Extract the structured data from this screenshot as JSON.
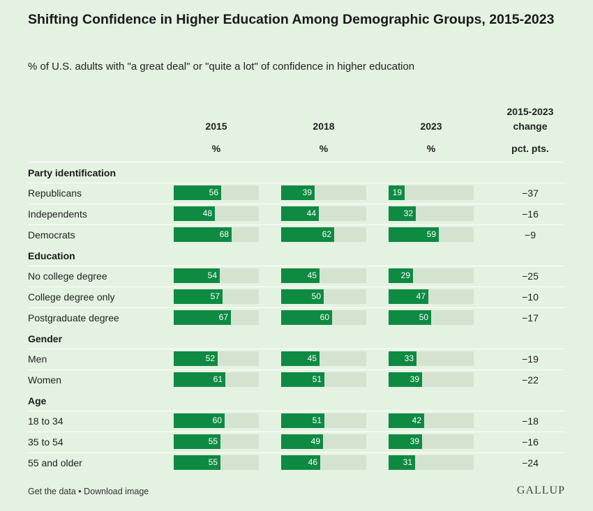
{
  "title": "Shifting Confidence in Higher Education Among Demographic Groups, 2015-2023",
  "subtitle": "% of U.S. adults with \"a great deal\" or \"quite a lot\" of confidence in higher education",
  "footer": {
    "links": "Get the data • Download image",
    "logo": "GALLUP"
  },
  "chart_data": {
    "type": "bar",
    "columns": [
      {
        "label": "2015",
        "unit": "%"
      },
      {
        "label": "2018",
        "unit": "%"
      },
      {
        "label": "2023",
        "unit": "%"
      },
      {
        "label": "2015-2023 change",
        "unit": "pct. pts."
      }
    ],
    "xlim": [
      0,
      100
    ],
    "colors": {
      "bar": "#0e8a43",
      "track": "#d3e3d0"
    },
    "groups": [
      {
        "name": "Party identification",
        "rows": [
          {
            "label": "Republicans",
            "values": [
              56,
              39,
              19
            ],
            "change": "−37"
          },
          {
            "label": "Independents",
            "values": [
              48,
              44,
              32
            ],
            "change": "−16"
          },
          {
            "label": "Democrats",
            "values": [
              68,
              62,
              59
            ],
            "change": "−9"
          }
        ]
      },
      {
        "name": "Education",
        "rows": [
          {
            "label": "No college degree",
            "values": [
              54,
              45,
              29
            ],
            "change": "−25"
          },
          {
            "label": "College degree only",
            "values": [
              57,
              50,
              47
            ],
            "change": "−10"
          },
          {
            "label": "Postgraduate degree",
            "values": [
              67,
              60,
              50
            ],
            "change": "−17"
          }
        ]
      },
      {
        "name": "Gender",
        "rows": [
          {
            "label": "Men",
            "values": [
              52,
              45,
              33
            ],
            "change": "−19"
          },
          {
            "label": "Women",
            "values": [
              61,
              51,
              39
            ],
            "change": "−22"
          }
        ]
      },
      {
        "name": "Age",
        "rows": [
          {
            "label": "18 to 34",
            "values": [
              60,
              51,
              42
            ],
            "change": "−18"
          },
          {
            "label": "35 to 54",
            "values": [
              55,
              49,
              39
            ],
            "change": "−16"
          },
          {
            "label": "55 and older",
            "values": [
              55,
              46,
              31
            ],
            "change": "−24"
          }
        ]
      }
    ]
  }
}
